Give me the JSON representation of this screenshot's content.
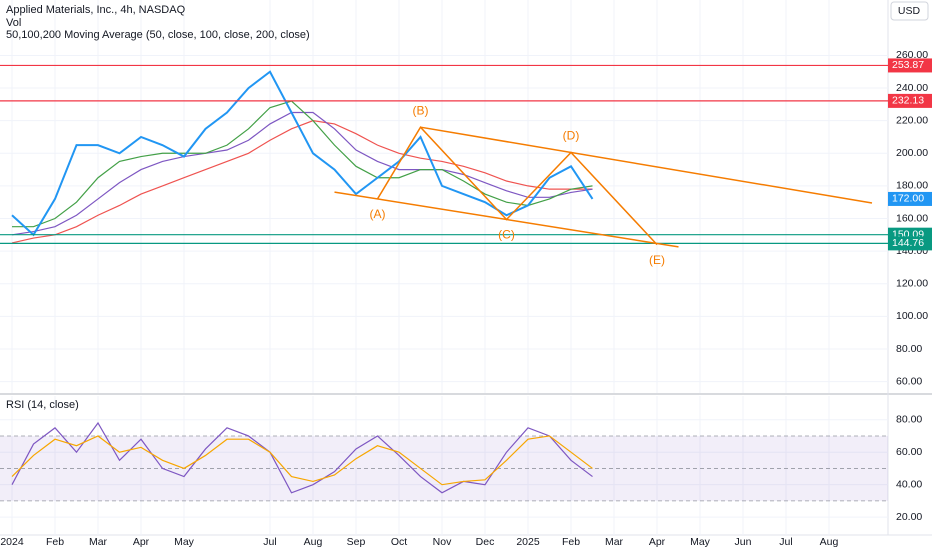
{
  "chart_data": [
    {
      "type": "line",
      "title": "Applied Materials, Inc., 4h, NASDAQ",
      "subtitle": "Vol",
      "indicator": "50,100,200 Moving Average (50, close, 100, close, 200, close)",
      "currency": "USD",
      "grid": true,
      "categories": [
        "2024",
        null,
        "Feb",
        null,
        "Mar",
        null,
        "Apr",
        null,
        "May",
        null,
        null,
        null,
        "Jul",
        null,
        "Aug",
        null,
        "Sep",
        null,
        "Oct",
        null,
        "Nov",
        null,
        "Dec",
        null,
        "2025",
        null,
        "Feb",
        null,
        "Mar",
        null,
        "Apr",
        null,
        "May",
        null,
        "Jun",
        null,
        "Jul",
        null,
        "Aug",
        null,
        null
      ],
      "ylim": [
        53,
        294
      ],
      "yticks": [
        {
          "value": 60,
          "label": "60.00"
        },
        {
          "value": 80,
          "label": "80.00"
        },
        {
          "value": 100,
          "label": "100.00"
        },
        {
          "value": 120,
          "label": "120.00"
        },
        {
          "value": 140,
          "label": "140.00"
        },
        {
          "value": 160,
          "label": "160.00"
        },
        {
          "value": 180,
          "label": "180.00"
        },
        {
          "value": 200,
          "label": "200.00"
        },
        {
          "value": 220,
          "label": "220.00"
        },
        {
          "value": 240,
          "label": "240.00"
        },
        {
          "value": 260,
          "label": "260.00"
        }
      ],
      "series": [
        {
          "color": "#ef5350",
          "values": [
            145,
            148,
            150,
            155,
            162,
            168,
            175,
            180,
            185,
            190,
            195,
            200,
            208,
            215,
            220,
            218,
            212,
            205,
            200,
            197,
            195,
            192,
            188,
            183,
            180,
            178,
            178,
            178,
            null,
            null,
            null,
            null,
            null,
            null,
            null,
            null,
            null,
            null,
            null,
            null,
            null
          ]
        },
        {
          "color": "#7e57c2",
          "values": [
            150,
            152,
            155,
            162,
            172,
            182,
            190,
            195,
            198,
            200,
            202,
            208,
            218,
            225,
            225,
            215,
            202,
            195,
            190,
            190,
            190,
            187,
            182,
            177,
            173,
            173,
            176,
            178,
            null,
            null,
            null,
            null,
            null,
            null,
            null,
            null,
            null,
            null,
            null,
            null,
            null
          ]
        },
        {
          "color": "#43a047",
          "values": [
            155,
            155,
            160,
            170,
            185,
            195,
            198,
            200,
            200,
            200,
            205,
            215,
            228,
            232,
            220,
            205,
            192,
            185,
            185,
            190,
            190,
            183,
            175,
            170,
            168,
            172,
            178,
            180,
            null,
            null,
            null,
            null,
            null,
            null,
            null,
            null,
            null,
            null,
            null,
            null,
            null
          ]
        },
        {
          "color": "#2196f3",
          "values": [
            162,
            150,
            172,
            205,
            205,
            200,
            210,
            205,
            198,
            215,
            225,
            240,
            250,
            225,
            200,
            190,
            175,
            185,
            195,
            210,
            180,
            175,
            170,
            162,
            168,
            185,
            192,
            172,
            null,
            null,
            null,
            null,
            null,
            null,
            null,
            null,
            null,
            null,
            null,
            null,
            null
          ]
        }
      ],
      "levels": [
        {
          "value": 253.87,
          "color": "#f23645"
        },
        {
          "value": 232.13,
          "color": "#f23645"
        },
        {
          "value": 150.09,
          "color": "#089981"
        },
        {
          "value": 144.76,
          "color": "#089981"
        }
      ],
      "last_price": {
        "value": 172,
        "label": "172.00",
        "color": "#2196f3"
      },
      "pattern_color": "#f57c00",
      "waves": [
        {
          "label": "(A)",
          "x": 17,
          "value": 172
        },
        {
          "label": "(B)",
          "x": 19,
          "value": 216
        },
        {
          "label": "(C)",
          "x": 23,
          "value": 159.4
        },
        {
          "label": "(D)",
          "x": 26,
          "value": 200.5
        },
        {
          "label": "(E)",
          "x": 30,
          "value": 144
        }
      ]
    },
    {
      "type": "line",
      "title": "RSI (14, close)",
      "ylim": [
        9,
        94
      ],
      "yticks": [
        {
          "value": 20,
          "label": "20.00"
        },
        {
          "value": 40,
          "label": "40.00"
        },
        {
          "value": 60,
          "label": "60.00"
        },
        {
          "value": 80,
          "label": "80.00"
        }
      ],
      "band": [
        30,
        70
      ],
      "midline": 50,
      "series": [
        {
          "color": "#7e57c2",
          "values": [
            40,
            65,
            75,
            60,
            78,
            55,
            68,
            50,
            45,
            62,
            75,
            70,
            60,
            35,
            40,
            48,
            62,
            70,
            58,
            45,
            35,
            42,
            40,
            60,
            75,
            70,
            55,
            45,
            null,
            null,
            null,
            null,
            null,
            null,
            null,
            null,
            null,
            null,
            null,
            null,
            null
          ]
        },
        {
          "color": "#f7a600",
          "values": [
            45,
            58,
            68,
            64,
            70,
            60,
            63,
            55,
            50,
            58,
            68,
            68,
            60,
            45,
            42,
            46,
            56,
            64,
            60,
            50,
            40,
            42,
            43,
            55,
            68,
            70,
            60,
            50,
            null,
            null,
            null,
            null,
            null,
            null,
            null,
            null,
            null,
            null,
            null,
            null,
            null
          ]
        }
      ]
    }
  ]
}
